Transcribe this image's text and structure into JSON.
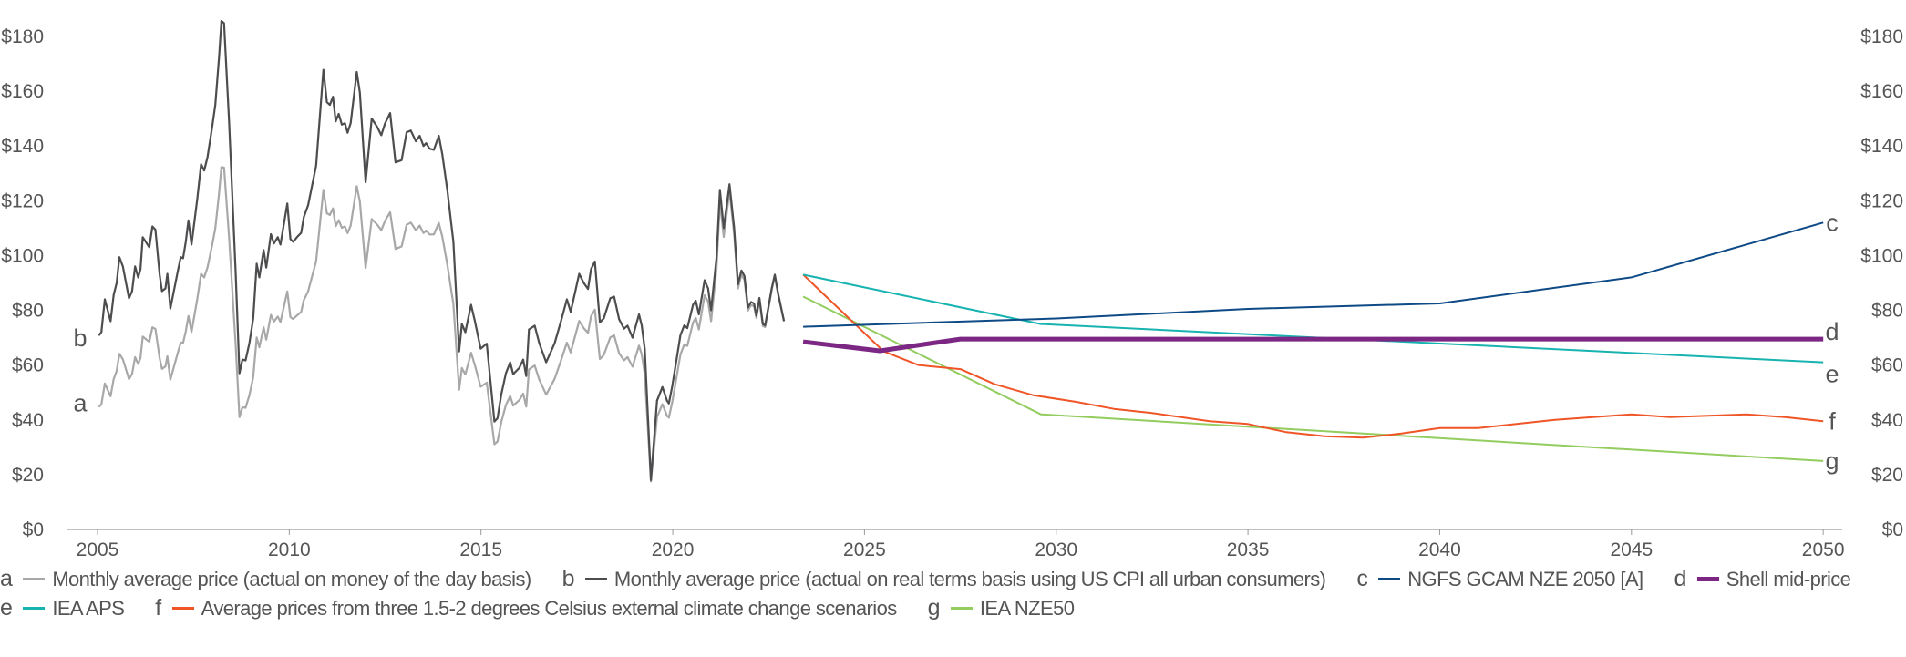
{
  "chart_data": {
    "type": "line",
    "title": "",
    "xlabel": "",
    "ylabel": "",
    "xlim": [
      2004.2,
      2050.5
    ],
    "ylim": [
      0,
      180
    ],
    "grid": false,
    "legend_placement": "bottom",
    "x_ticks": [
      "2005",
      "2010",
      "2015",
      "2020",
      "2025",
      "2030",
      "2035",
      "2040",
      "2045",
      "2050"
    ],
    "x_tick_values": [
      2005,
      2010,
      2015,
      2020,
      2025,
      2030,
      2035,
      2040,
      2045,
      2050
    ],
    "y_ticks": [
      "$0",
      "$20",
      "$40",
      "$60",
      "$80",
      "$100",
      "$120",
      "$140",
      "$160",
      "$180"
    ],
    "y_tick_values": [
      0,
      20,
      40,
      60,
      80,
      100,
      120,
      140,
      160,
      180
    ],
    "historical_x": [
      2005.03,
      2005.1,
      2005.19,
      2005.34,
      2005.42,
      2005.5,
      2005.57,
      2005.66,
      2005.82,
      2005.9,
      2005.98,
      2006.06,
      2006.12,
      2006.18,
      2006.35,
      2006.43,
      2006.51,
      2006.62,
      2006.68,
      2006.77,
      2006.82,
      2006.9,
      2007.09,
      2007.17,
      2007.23,
      2007.3,
      2007.37,
      2007.45,
      2007.6,
      2007.7,
      2007.78,
      2007.87,
      2007.99,
      2008.07,
      2008.17,
      2008.23,
      2008.3,
      2008.43,
      2008.6,
      2008.7,
      2008.78,
      2008.86,
      2008.96,
      2009.06,
      2009.15,
      2009.22,
      2009.33,
      2009.4,
      2009.52,
      2009.6,
      2009.7,
      2009.77,
      2009.95,
      2010.03,
      2010.1,
      2010.2,
      2010.31,
      2010.38,
      2010.49,
      2010.7,
      2010.89,
      2010.98,
      2011.06,
      2011.14,
      2011.21,
      2011.29,
      2011.37,
      2011.45,
      2011.52,
      2011.6,
      2011.76,
      2011.84,
      2011.99,
      2012.15,
      2012.29,
      2012.4,
      2012.5,
      2012.63,
      2012.77,
      2012.93,
      2013.06,
      2013.17,
      2013.3,
      2013.4,
      2013.5,
      2013.57,
      2013.66,
      2013.77,
      2013.9,
      2013.99,
      2014.12,
      2014.28,
      2014.43,
      2014.5,
      2014.59,
      2014.74,
      2014.84,
      2014.99,
      2015.15,
      2015.35,
      2015.43,
      2015.53,
      2015.65,
      2015.76,
      2015.84,
      2016.0,
      2016.1,
      2016.18,
      2016.25,
      2016.4,
      2016.52,
      2016.7,
      2016.92,
      2017.1,
      2017.24,
      2017.34,
      2017.56,
      2017.68,
      2017.79,
      2017.87,
      2017.97,
      2018.1,
      2018.2,
      2018.37,
      2018.47,
      2018.6,
      2018.73,
      2018.82,
      2018.95,
      2019.12,
      2019.19,
      2019.27,
      2019.43,
      2019.59,
      2019.73,
      2019.85,
      2019.9,
      2019.99,
      2020.2,
      2020.3,
      2020.38,
      2020.53,
      2020.6,
      2020.68,
      2020.83,
      2020.92,
      2021.0,
      2021.14,
      2021.23,
      2021.33,
      2021.48,
      2021.6,
      2021.7,
      2021.79,
      2021.87,
      2021.96,
      2022.04,
      2022.12,
      2022.18,
      2022.26,
      2022.35,
      2022.41,
      2022.58,
      2022.66,
      2022.75,
      2022.9
    ],
    "series": [
      {
        "key": "a",
        "name": "Monthly average price (actual on money of the day basis)",
        "color": "#a8a8a8",
        "label": "a",
        "x_ref": "historical_x",
        "values": [
          44.7,
          45.6,
          53.3,
          48.6,
          54.9,
          57.9,
          64.1,
          62.1,
          54.9,
          56.8,
          62.9,
          60.4,
          62.6,
          70.4,
          68.5,
          73.8,
          73.2,
          62.4,
          58.6,
          59.5,
          63.2,
          54.7,
          64.3,
          68.2,
          68.1,
          72.3,
          77.9,
          72.1,
          84.1,
          93.3,
          92.0,
          95.7,
          103.9,
          109.9,
          123.0,
          132.3,
          132.1,
          106.7,
          67.5,
          41.0,
          44.6,
          44.4,
          49.0,
          55.6,
          70.1,
          66.5,
          73.8,
          69.3,
          78.3,
          75.9,
          77.7,
          75.7,
          86.9,
          77.5,
          76.8,
          78.1,
          79.4,
          83.7,
          86.9,
          97.9,
          124.0,
          115.4,
          114.8,
          117.2,
          110.7,
          112.9,
          110.1,
          110.6,
          108.2,
          110.9,
          125.3,
          119.7,
          95.4,
          113.3,
          111.3,
          109.2,
          112.7,
          115.8,
          102.4,
          103.3,
          111.2,
          112.0,
          109.2,
          110.9,
          108.2,
          109.1,
          107.7,
          107.7,
          111.9,
          106.9,
          96.8,
          82.2,
          51.0,
          58.9,
          56.6,
          64.5,
          59.9,
          52.1,
          53.6,
          31.1,
          32.1,
          39.3,
          45.4,
          48.7,
          45.2,
          47.2,
          49.6,
          44.8,
          58.4,
          59.8,
          54.7,
          49.2,
          55.0,
          62.2,
          68.2,
          64.6,
          76.1,
          73.5,
          71.8,
          77.8,
          80.2,
          62.2,
          63.6,
          70.1,
          70.9,
          64.3,
          61.7,
          62.9,
          59.4,
          67.1,
          63.9,
          56.8,
          17.5,
          41.1,
          45.7,
          41.5,
          40.8,
          46.7,
          63.9,
          67.5,
          67.0,
          75.5,
          77.2,
          73.0,
          85.5,
          83.2,
          76.0,
          95.0,
          119.7,
          106.8,
          123.5,
          107.8,
          88.0,
          93.0,
          91.1,
          79.9,
          81.9,
          81.5,
          77.2,
          83.7,
          74.3,
          73.9,
          87.5,
          92.5,
          85.7,
          76.0
        ]
      },
      {
        "key": "b",
        "name": "Monthly average price (actual on real terms basis using US CPI all urban consumers)",
        "color": "#4d4d4f",
        "label": "b",
        "x_ref": "historical_x",
        "values": [
          70.8,
          72,
          84,
          76,
          85.6,
          90,
          99.4,
          96,
          84.4,
          87,
          96,
          92,
          95,
          106.7,
          103,
          110.6,
          109.4,
          92.8,
          87,
          88,
          93.3,
          80.6,
          94,
          99.4,
          99,
          105,
          112.8,
          104,
          120.6,
          133.3,
          131,
          136,
          147,
          155,
          172.8,
          185.6,
          184.8,
          149,
          94,
          57,
          62,
          61.7,
          68,
          77,
          97,
          92,
          102,
          95.6,
          107.8,
          104.4,
          106.7,
          104,
          119,
          106,
          105,
          106.7,
          108.3,
          114,
          118.3,
          132.8,
          167.8,
          156,
          155,
          158,
          149,
          151.7,
          147.8,
          148.3,
          144.8,
          148.3,
          167,
          159.4,
          126.7,
          150,
          147,
          143.9,
          148.3,
          152,
          134,
          134.8,
          145,
          145.6,
          141.7,
          143.7,
          140,
          141,
          139,
          138.6,
          143.7,
          137,
          124,
          105,
          65,
          75,
          72,
          82,
          76,
          66,
          67.8,
          39.4,
          40.6,
          49.4,
          57,
          61,
          56.7,
          59,
          62,
          56,
          73,
          74.4,
          68,
          61,
          68,
          76.7,
          84,
          79.4,
          93.3,
          90,
          87.8,
          95,
          97.8,
          75.6,
          77,
          84.4,
          85,
          76.7,
          73.3,
          74.4,
          70,
          78.5,
          74.5,
          66,
          18,
          47,
          52,
          47,
          46,
          52.5,
          71,
          74.5,
          73.5,
          82,
          83.5,
          78.5,
          91,
          88,
          80,
          99,
          124,
          110,
          126,
          110,
          89.5,
          94.5,
          92.5,
          81,
          83,
          82.5,
          78,
          84.5,
          75,
          74.5,
          88,
          93,
          86,
          76
        ]
      },
      {
        "key": "c",
        "name": "NGFS GCAM NZE 2050 [A]",
        "color": "#0d4a86",
        "label": "c",
        "x": [
          2023.4,
          2030,
          2035,
          2040,
          2045,
          2050
        ],
        "values": [
          74,
          77,
          80.5,
          82.5,
          92,
          112
        ]
      },
      {
        "key": "d",
        "name": "Shell mid-price",
        "color": "#7b2783",
        "label": "d",
        "x": [
          2023.4,
          2025.4,
          2027.5,
          2030,
          2035,
          2040,
          2045,
          2050
        ],
        "values": [
          68.5,
          65.2,
          69.5,
          69.5,
          69.5,
          69.5,
          69.5,
          69.5
        ]
      },
      {
        "key": "e",
        "name": "IEA APS",
        "color": "#17b3b0",
        "label": "e",
        "x": [
          2023.4,
          2029.6,
          2050
        ],
        "values": [
          93,
          75,
          61
        ]
      },
      {
        "key": "f",
        "name": "Average prices from three 1.5-2 degrees Celsius external climate change scenarios",
        "color": "#ef5527",
        "label": "f",
        "x": [
          2023.4,
          2025.5,
          2026.4,
          2027.5,
          2028.4,
          2029.4,
          2030.5,
          2031.5,
          2032.5,
          2034,
          2035,
          2036,
          2037,
          2038,
          2039,
          2040,
          2041,
          2042,
          2043,
          2044,
          2045,
          2046,
          2047,
          2048,
          2049,
          2050
        ],
        "values": [
          93,
          65,
          60,
          58.5,
          53,
          49,
          46.6,
          44,
          42.5,
          39.5,
          38.5,
          35.5,
          34,
          33.5,
          35,
          37,
          37,
          38.5,
          40,
          41,
          42,
          41,
          41.5,
          42,
          41,
          39.5
        ]
      },
      {
        "key": "g",
        "name": "IEA NZE50",
        "color": "#93cc5f",
        "label": "g",
        "x": [
          2023.4,
          2029.6,
          2050
        ],
        "values": [
          85,
          42,
          25
        ]
      }
    ]
  },
  "legend": {
    "rows": [
      [
        {
          "letter": "a",
          "text": "Monthly average price (actual on money of the day basis)",
          "color": "#a8a8a8"
        },
        {
          "letter": "b",
          "text": "Monthly average price (actual on real terms basis using US CPI all urban consumers)",
          "color": "#4d4d4f"
        },
        {
          "letter": "c",
          "text": "NGFS GCAM NZE 2050 [A]",
          "color": "#0d4a86"
        }
      ],
      [
        {
          "letter": "d",
          "text": "Shell mid-price",
          "color": "#7b2783"
        },
        {
          "letter": "e",
          "text": "IEA APS",
          "color": "#17b3b0"
        },
        {
          "letter": "f",
          "text": "Average prices from three 1.5-2 degrees Celsius external climate change scenarios",
          "color": "#ef5527"
        },
        {
          "letter": "g",
          "text": "IEA NZE50",
          "color": "#93cc5f"
        }
      ]
    ]
  }
}
